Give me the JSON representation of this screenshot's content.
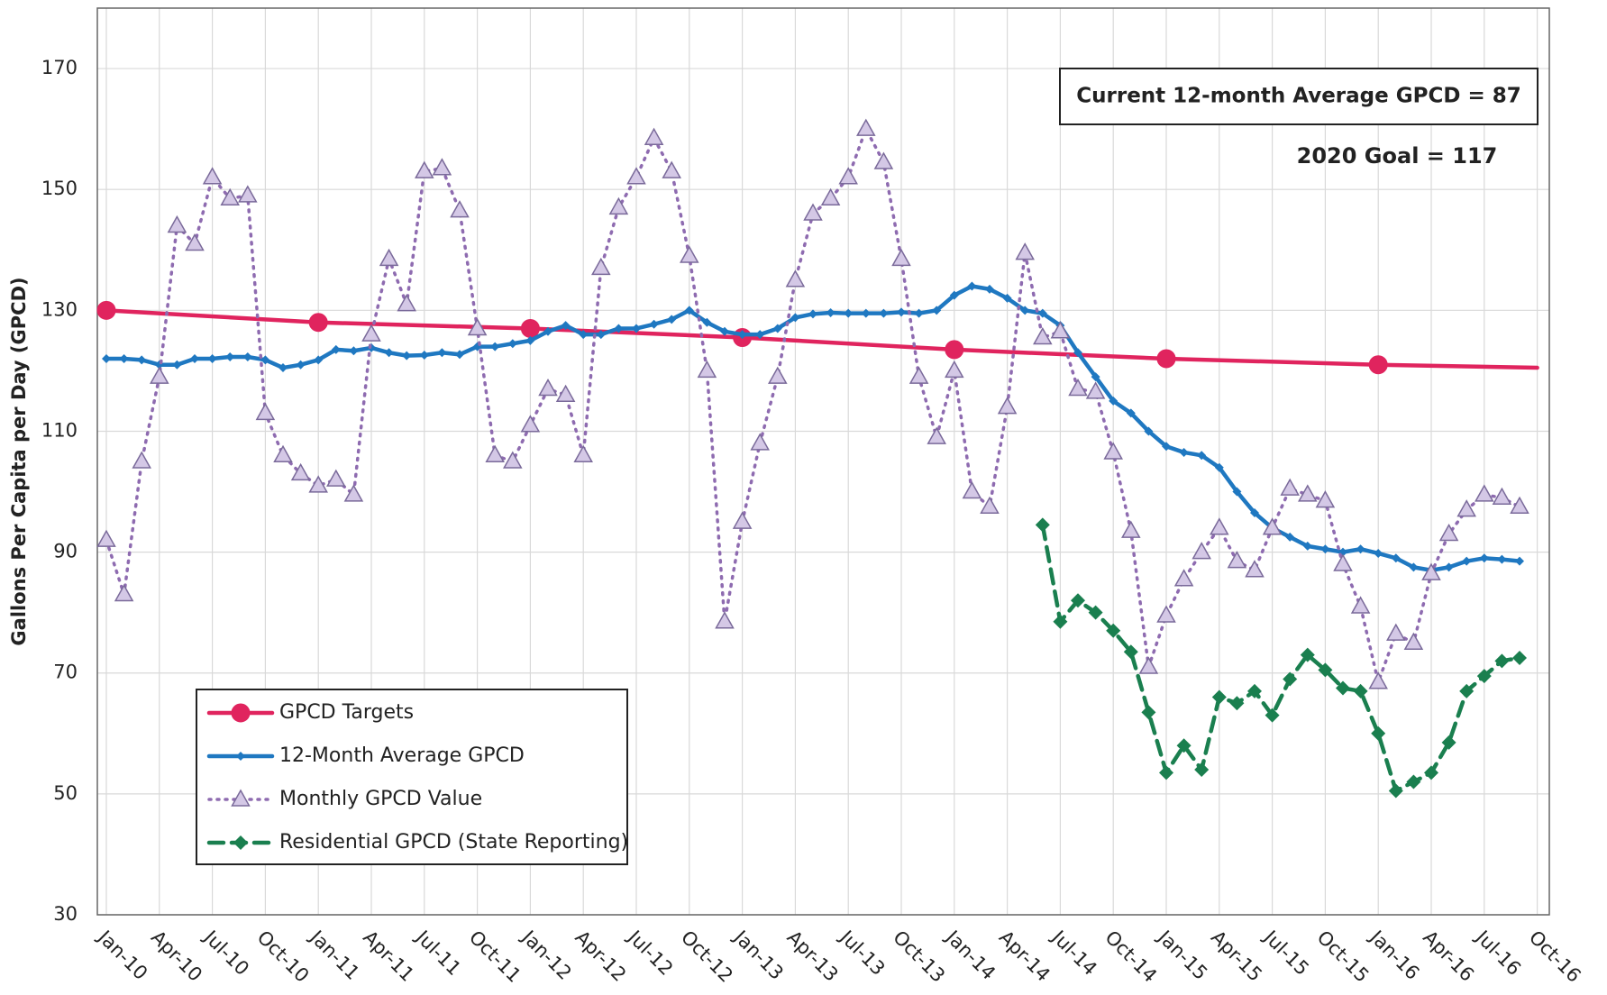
{
  "chart_data": {
    "type": "line",
    "y_label": "Gallons Per Capita per Day (GPCD)",
    "annotations": [
      "Current 12-month Average GPCD = 87",
      "2020 Goal = 117"
    ],
    "categories": [
      "Jan-10",
      null,
      null,
      "Apr-10",
      null,
      null,
      "Jul-10",
      null,
      null,
      "Oct-10",
      null,
      null,
      "Jan-11",
      null,
      null,
      "Apr-11",
      null,
      null,
      "Jul-11",
      null,
      null,
      "Oct-11",
      null,
      null,
      "Jan-12",
      null,
      null,
      "Apr-12",
      null,
      null,
      "Jul-12",
      null,
      null,
      "Oct-12",
      null,
      null,
      "Jan-13",
      null,
      null,
      "Apr-13",
      null,
      null,
      "Jul-13",
      null,
      null,
      "Oct-13",
      null,
      null,
      "Jan-14",
      null,
      null,
      "Apr-14",
      null,
      null,
      "Jul-14",
      null,
      null,
      "Oct-14",
      null,
      null,
      "Jan-15",
      null,
      null,
      "Apr-15",
      null,
      null,
      "Jul-15",
      null,
      null,
      "Oct-15",
      null,
      null,
      "Jan-16",
      null,
      null,
      "Apr-16",
      null,
      null,
      "Jul-16",
      null,
      null,
      "Oct-16"
    ],
    "ylim": [
      30,
      180
    ],
    "yticks": [
      30,
      50,
      70,
      90,
      110,
      130,
      150,
      170
    ],
    "grid": true,
    "legend": "lower left",
    "series": [
      {
        "name": "GPCD Targets",
        "color": "#e0245e",
        "style": "solid",
        "marker": "circle",
        "x": [
          0,
          12,
          24,
          36,
          48,
          60,
          72,
          81
        ],
        "values": [
          130,
          128,
          127,
          125.5,
          123.5,
          122,
          121,
          120.5
        ]
      },
      {
        "name": "12-Month Average GPCD",
        "color": "#1f78c1",
        "style": "solid",
        "marker": "diamond",
        "values": [
          122,
          122,
          121.8,
          121,
          121,
          122,
          122,
          122.3,
          122.3,
          121.8,
          120.5,
          121,
          121.8,
          123.5,
          123.3,
          123.8,
          123,
          122.5,
          122.6,
          123,
          122.7,
          124,
          124,
          124.5,
          125,
          126.5,
          127.5,
          126,
          126,
          127,
          127,
          127.7,
          128.5,
          130,
          128,
          126.5,
          126,
          126,
          127,
          128.8,
          129.4,
          129.6,
          129.5,
          129.5,
          129.5,
          129.7,
          129.5,
          130,
          132.5,
          134,
          133.5,
          132,
          130,
          129.5,
          127.5,
          123,
          119,
          115,
          113,
          110,
          107.5,
          106.5,
          106,
          104,
          100,
          96.5,
          94,
          92.5,
          91,
          90.5,
          90,
          90.5,
          89.8,
          89,
          87.5,
          87,
          87.5,
          88.5,
          89,
          88.8,
          88.5,
          null
        ]
      },
      {
        "name": "Monthly GPCD Value",
        "color": "#8e6bb0",
        "style": "dotted",
        "marker": "triangle",
        "values": [
          92,
          83,
          105,
          119,
          144,
          141,
          152,
          148.5,
          149,
          113,
          106,
          103,
          101,
          102,
          99.5,
          126,
          138.5,
          131,
          153,
          153.5,
          146.5,
          127,
          106,
          105,
          111,
          117,
          116,
          106,
          137,
          147,
          152,
          158.5,
          153,
          139,
          120,
          78.5,
          95,
          108,
          119,
          135,
          146,
          148.5,
          152,
          160,
          154.5,
          138.5,
          119,
          109,
          120,
          100,
          97.5,
          114,
          139.5,
          125.5,
          126.5,
          117,
          116.5,
          106.5,
          93.5,
          71,
          79.5,
          85.5,
          90,
          94,
          88.5,
          87,
          94,
          100.5,
          99.5,
          98.5,
          88,
          81,
          68.5,
          76.5,
          75,
          86.5,
          93,
          97,
          99.5,
          99,
          97.5,
          null
        ]
      },
      {
        "name": "Residential GPCD (State Reporting)",
        "color": "#1a7f4f",
        "style": "dashed",
        "marker": "diamond",
        "values": [
          null,
          null,
          null,
          null,
          null,
          null,
          null,
          null,
          null,
          null,
          null,
          null,
          null,
          null,
          null,
          null,
          null,
          null,
          null,
          null,
          null,
          null,
          null,
          null,
          null,
          null,
          null,
          null,
          null,
          null,
          null,
          null,
          null,
          null,
          null,
          null,
          null,
          null,
          null,
          null,
          null,
          null,
          null,
          null,
          null,
          null,
          null,
          null,
          null,
          null,
          null,
          null,
          null,
          94.5,
          78.5,
          82,
          80,
          77,
          73.5,
          63.5,
          53.5,
          58,
          54,
          66,
          65,
          67,
          63,
          69,
          73,
          70.5,
          67.5,
          67,
          60,
          50.5,
          52,
          53.5,
          58.5,
          67,
          69.5,
          72,
          72.5,
          null
        ]
      }
    ]
  }
}
